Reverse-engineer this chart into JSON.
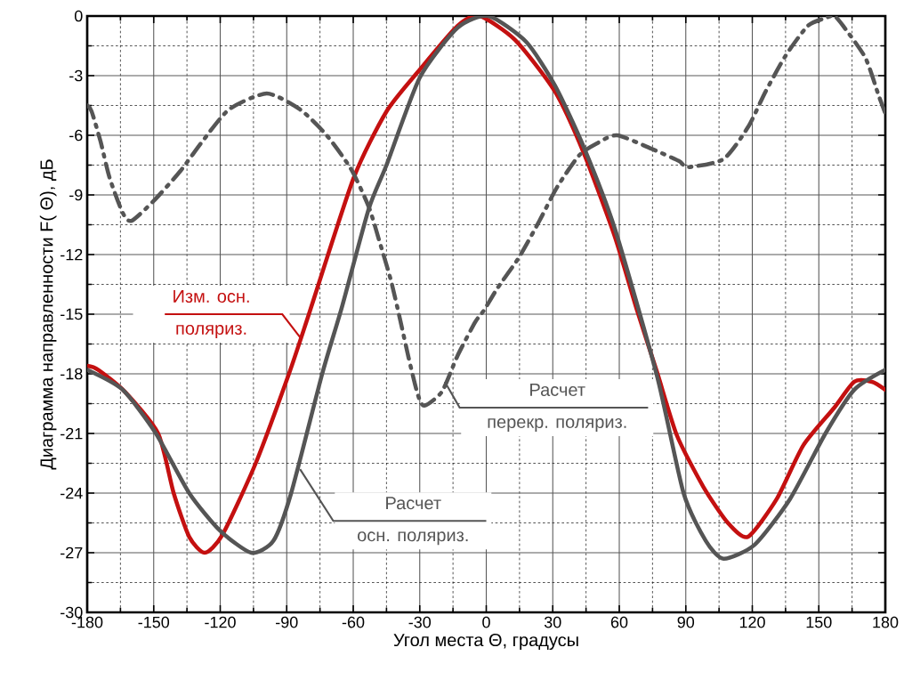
{
  "chart_data": {
    "type": "line",
    "xlabel": "Угол места Θ, градусы",
    "ylabel": "Диаграмма направленности F( Θ), дБ",
    "xlim": [
      -180,
      180
    ],
    "ylim": [
      -30,
      0
    ],
    "xticks": [
      -180,
      -150,
      -120,
      -90,
      -60,
      -30,
      0,
      30,
      60,
      90,
      120,
      150,
      180
    ],
    "yticks": [
      -30,
      -27,
      -24,
      -21,
      -18,
      -15,
      -12,
      -9,
      -6,
      -3,
      0
    ],
    "grid": true,
    "series": [
      {
        "name": "Изм. осн. поляриз.",
        "color": "#c41010",
        "line_style": "solid",
        "x": [
          -180,
          -175,
          -163,
          -148,
          -141,
          -134,
          -127,
          -119,
          -104,
          -89,
          -80,
          -60,
          -45,
          -30,
          -13,
          -3,
          13,
          31,
          44,
          58,
          68,
          77,
          86,
          98,
          109,
          118,
          131,
          143,
          157,
          166,
          174,
          180
        ],
        "values": [
          -17.6,
          -17.8,
          -18.9,
          -21.0,
          -24.0,
          -26.2,
          -27.0,
          -26.1,
          -22.5,
          -18.0,
          -15.0,
          -8.2,
          -4.8,
          -2.7,
          -0.5,
          0,
          -1.2,
          -3.8,
          -6.9,
          -11.1,
          -14.8,
          -17.9,
          -21.1,
          -23.7,
          -25.5,
          -26.2,
          -24.3,
          -21.6,
          -19.7,
          -18.4,
          -18.4,
          -18.8
        ]
      },
      {
        "name": "Расчет осн. поляриз.",
        "color": "#555555",
        "line_style": "solid",
        "x": [
          -180,
          -164,
          -149,
          -134,
          -120,
          -106,
          -96,
          -88,
          -74,
          -65,
          -53,
          -45,
          -30,
          -13,
          1,
          18,
          31,
          44,
          58,
          77,
          89,
          99,
          107,
          121,
          137,
          153,
          166,
          180
        ],
        "values": [
          -17.8,
          -18.8,
          -21.0,
          -24.0,
          -25.9,
          -27.0,
          -26.4,
          -24.0,
          -18.0,
          -14.6,
          -9.7,
          -7.5,
          -3.1,
          -0.6,
          0,
          -1.3,
          -3.5,
          -6.6,
          -10.7,
          -18.1,
          -24.0,
          -26.4,
          -27.3,
          -26.6,
          -24.3,
          -21.0,
          -18.8,
          -17.8
        ]
      },
      {
        "name": "Расчет перекр. поляриз.",
        "color": "#555555",
        "line_style": "dashdot",
        "x": [
          -180,
          -178,
          -174,
          -170,
          -164,
          -160,
          -150,
          -138,
          -128,
          -116,
          -99,
          -84,
          -72,
          -61,
          -53,
          -48,
          -43,
          -39,
          -35,
          -31,
          -28,
          -20,
          -13,
          -5,
          -1,
          5,
          15,
          24,
          32,
          42,
          50,
          59,
          75,
          87,
          91,
          107,
          118,
          126,
          135,
          145,
          153,
          157,
          161,
          171,
          177,
          180
        ],
        "values": [
          -4.5,
          -4.8,
          -6.3,
          -8.1,
          -9.9,
          -10.3,
          -9.3,
          -7.8,
          -6.3,
          -4.7,
          -3.9,
          -4.7,
          -6.0,
          -7.7,
          -9.6,
          -11.4,
          -13.3,
          -15.2,
          -17.2,
          -19.0,
          -19.6,
          -18.9,
          -17.1,
          -15.4,
          -14.8,
          -13.7,
          -12.1,
          -10.3,
          -8.6,
          -7.0,
          -6.4,
          -6.0,
          -6.7,
          -7.3,
          -7.6,
          -7.2,
          -5.6,
          -3.8,
          -2.0,
          -0.5,
          -0.1,
          0,
          -0.5,
          -2.1,
          -4.0,
          -4.9
        ]
      }
    ]
  }
}
